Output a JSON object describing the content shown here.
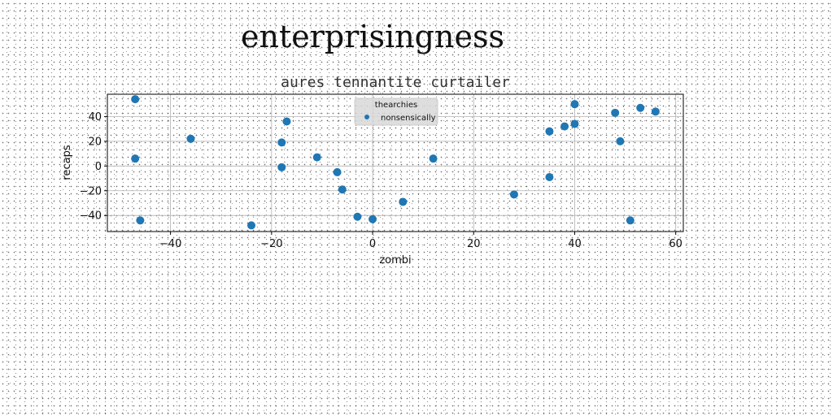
{
  "figure_title": "enterprisingness",
  "chart_data": {
    "type": "scatter",
    "title": "aures tennantite curtailer",
    "xlabel": "zombi",
    "ylabel": "recaps",
    "xlim": [
      -52.5,
      61.5
    ],
    "ylim": [
      -53,
      58
    ],
    "xticks": [
      -40,
      -20,
      0,
      20,
      40,
      60
    ],
    "yticks": [
      -40,
      -20,
      0,
      20,
      40
    ],
    "grid": true,
    "legend": {
      "title": "thearchies",
      "placement": "top-center",
      "entries": [
        "nonsensically"
      ]
    },
    "series": [
      {
        "name": "nonsensically",
        "color": "#1f77b4",
        "points": [
          [
            -47,
            54
          ],
          [
            -47,
            6
          ],
          [
            -46,
            -44
          ],
          [
            -36,
            22
          ],
          [
            -24,
            -48
          ],
          [
            -18,
            19
          ],
          [
            -18,
            -1
          ],
          [
            -17,
            36
          ],
          [
            -11,
            7
          ],
          [
            -7,
            -5
          ],
          [
            -6,
            -19
          ],
          [
            -3,
            -41
          ],
          [
            0,
            -43
          ],
          [
            6,
            -29
          ],
          [
            12,
            6
          ],
          [
            28,
            -23
          ],
          [
            35,
            28
          ],
          [
            35,
            -9
          ],
          [
            38,
            32
          ],
          [
            40,
            50
          ],
          [
            40,
            34
          ],
          [
            48,
            43
          ],
          [
            49,
            20
          ],
          [
            51,
            -44
          ],
          [
            53,
            47
          ],
          [
            56,
            44
          ]
        ]
      }
    ]
  }
}
